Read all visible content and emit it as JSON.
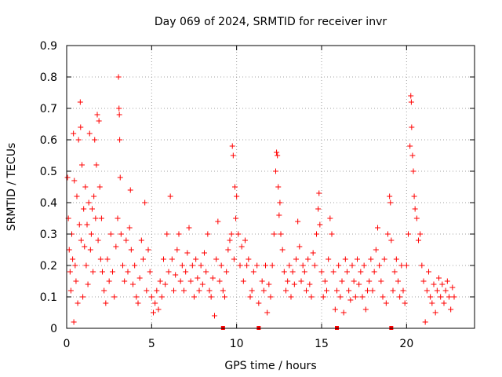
{
  "chart_data": {
    "type": "scatter",
    "title": "Day 069 of 2024, SRMTID for receiver invr",
    "xlabel": "GPS time / hours",
    "ylabel": "SRMTID / TECUs",
    "xlim": [
      0,
      24
    ],
    "ylim": [
      0,
      0.9
    ],
    "x_ticks": [
      0,
      5,
      10,
      15,
      20
    ],
    "x_tick_labels": [
      "0",
      "5",
      "10",
      "15",
      "20"
    ],
    "y_ticks": [
      0,
      0.1,
      0.2,
      0.3,
      0.4,
      0.5,
      0.6,
      0.7,
      0.8,
      0.9
    ],
    "y_tick_labels": [
      "0",
      "0.1",
      "0.2",
      "0.3",
      "0.4",
      "0.5",
      "0.6",
      "0.7",
      "0.8",
      "0.9"
    ],
    "grid": true,
    "marker": "plus",
    "color": "#ff0000",
    "series": [
      {
        "name": "SRMTID",
        "points": [
          [
            0.05,
            0.48
          ],
          [
            0.1,
            0.35
          ],
          [
            0.15,
            0.25
          ],
          [
            0.2,
            0.18
          ],
          [
            0.25,
            0.12
          ],
          [
            0.3,
            0.3
          ],
          [
            0.35,
            0.22
          ],
          [
            0.4,
            0.62
          ],
          [
            0.42,
            0.02
          ],
          [
            0.45,
            0.47
          ],
          [
            0.5,
            0.2
          ],
          [
            0.55,
            0.15
          ],
          [
            0.6,
            0.42
          ],
          [
            0.65,
            0.08
          ],
          [
            0.7,
            0.6
          ],
          [
            0.75,
            0.33
          ],
          [
            0.8,
            0.72
          ],
          [
            0.82,
            0.64
          ],
          [
            0.85,
            0.28
          ],
          [
            0.9,
            0.52
          ],
          [
            0.95,
            0.1
          ],
          [
            1.0,
            0.38
          ],
          [
            1.05,
            0.26
          ],
          [
            1.1,
            0.45
          ],
          [
            1.15,
            0.2
          ],
          [
            1.2,
            0.33
          ],
          [
            1.25,
            0.14
          ],
          [
            1.3,
            0.4
          ],
          [
            1.35,
            0.62
          ],
          [
            1.4,
            0.25
          ],
          [
            1.45,
            0.3
          ],
          [
            1.5,
            0.38
          ],
          [
            1.55,
            0.18
          ],
          [
            1.6,
            0.42
          ],
          [
            1.65,
            0.6
          ],
          [
            1.7,
            0.35
          ],
          [
            1.75,
            0.52
          ],
          [
            1.8,
            0.68
          ],
          [
            1.85,
            0.28
          ],
          [
            1.9,
            0.66
          ],
          [
            1.95,
            0.45
          ],
          [
            2.0,
            0.22
          ],
          [
            2.05,
            0.35
          ],
          [
            2.1,
            0.18
          ],
          [
            2.2,
            0.12
          ],
          [
            2.3,
            0.08
          ],
          [
            2.4,
            0.22
          ],
          [
            2.5,
            0.15
          ],
          [
            2.6,
            0.3
          ],
          [
            2.7,
            0.18
          ],
          [
            2.8,
            0.1
          ],
          [
            2.9,
            0.26
          ],
          [
            3.0,
            0.35
          ],
          [
            3.05,
            0.8
          ],
          [
            3.08,
            0.7
          ],
          [
            3.1,
            0.68
          ],
          [
            3.12,
            0.6
          ],
          [
            3.15,
            0.48
          ],
          [
            3.2,
            0.3
          ],
          [
            3.3,
            0.2
          ],
          [
            3.4,
            0.15
          ],
          [
            3.5,
            0.28
          ],
          [
            3.6,
            0.18
          ],
          [
            3.7,
            0.32
          ],
          [
            3.75,
            0.44
          ],
          [
            3.8,
            0.25
          ],
          [
            3.9,
            0.14
          ],
          [
            4.0,
            0.2
          ],
          [
            4.1,
            0.1
          ],
          [
            4.2,
            0.08
          ],
          [
            4.3,
            0.16
          ],
          [
            4.4,
            0.28
          ],
          [
            4.5,
            0.22
          ],
          [
            4.6,
            0.4
          ],
          [
            4.7,
            0.12
          ],
          [
            4.8,
            0.25
          ],
          [
            4.9,
            0.18
          ],
          [
            5.0,
            0.1
          ],
          [
            5.1,
            0.05
          ],
          [
            5.2,
            0.08
          ],
          [
            5.3,
            0.12
          ],
          [
            5.4,
            0.06
          ],
          [
            5.5,
            0.15
          ],
          [
            5.6,
            0.1
          ],
          [
            5.7,
            0.22
          ],
          [
            5.8,
            0.14
          ],
          [
            5.9,
            0.3
          ],
          [
            6.0,
            0.18
          ],
          [
            6.1,
            0.42
          ],
          [
            6.2,
            0.22
          ],
          [
            6.3,
            0.12
          ],
          [
            6.4,
            0.17
          ],
          [
            6.5,
            0.25
          ],
          [
            6.6,
            0.3
          ],
          [
            6.7,
            0.15
          ],
          [
            6.8,
            0.2
          ],
          [
            6.9,
            0.12
          ],
          [
            7.0,
            0.18
          ],
          [
            7.1,
            0.24
          ],
          [
            7.2,
            0.32
          ],
          [
            7.3,
            0.15
          ],
          [
            7.4,
            0.2
          ],
          [
            7.5,
            0.1
          ],
          [
            7.6,
            0.22
          ],
          [
            7.7,
            0.16
          ],
          [
            7.8,
            0.12
          ],
          [
            7.9,
            0.2
          ],
          [
            8.0,
            0.14
          ],
          [
            8.1,
            0.24
          ],
          [
            8.2,
            0.18
          ],
          [
            8.3,
            0.3
          ],
          [
            8.4,
            0.12
          ],
          [
            8.5,
            0.1
          ],
          [
            8.6,
            0.16
          ],
          [
            8.7,
            0.04
          ],
          [
            8.8,
            0.22
          ],
          [
            8.9,
            0.34
          ],
          [
            9.0,
            0.15
          ],
          [
            9.1,
            0.2
          ],
          [
            9.2,
            0.12
          ],
          [
            9.3,
            0.1
          ],
          [
            9.4,
            0.18
          ],
          [
            9.5,
            0.25
          ],
          [
            9.6,
            0.28
          ],
          [
            9.7,
            0.3
          ],
          [
            9.75,
            0.58
          ],
          [
            9.8,
            0.55
          ],
          [
            9.85,
            0.22
          ],
          [
            9.9,
            0.45
          ],
          [
            9.95,
            0.35
          ],
          [
            10.0,
            0.42
          ],
          [
            10.1,
            0.3
          ],
          [
            10.2,
            0.2
          ],
          [
            10.3,
            0.26
          ],
          [
            10.4,
            0.15
          ],
          [
            10.5,
            0.28
          ],
          [
            10.6,
            0.2
          ],
          [
            10.7,
            0.22
          ],
          [
            10.8,
            0.1
          ],
          [
            10.9,
            0.12
          ],
          [
            11.0,
            0.18
          ],
          [
            11.2,
            0.2
          ],
          [
            11.3,
            0.08
          ],
          [
            11.5,
            0.15
          ],
          [
            11.6,
            0.12
          ],
          [
            11.7,
            0.2
          ],
          [
            11.8,
            0.05
          ],
          [
            11.9,
            0.14
          ],
          [
            12.0,
            0.1
          ],
          [
            12.1,
            0.2
          ],
          [
            12.2,
            0.3
          ],
          [
            12.3,
            0.5
          ],
          [
            12.35,
            0.56
          ],
          [
            12.4,
            0.55
          ],
          [
            12.45,
            0.45
          ],
          [
            12.5,
            0.36
          ],
          [
            12.55,
            0.4
          ],
          [
            12.6,
            0.3
          ],
          [
            12.7,
            0.25
          ],
          [
            12.8,
            0.18
          ],
          [
            12.9,
            0.12
          ],
          [
            13.0,
            0.15
          ],
          [
            13.1,
            0.2
          ],
          [
            13.2,
            0.1
          ],
          [
            13.3,
            0.18
          ],
          [
            13.4,
            0.14
          ],
          [
            13.5,
            0.22
          ],
          [
            13.6,
            0.34
          ],
          [
            13.7,
            0.26
          ],
          [
            13.8,
            0.15
          ],
          [
            13.9,
            0.2
          ],
          [
            14.0,
            0.18
          ],
          [
            14.1,
            0.12
          ],
          [
            14.2,
            0.22
          ],
          [
            14.3,
            0.14
          ],
          [
            14.4,
            0.1
          ],
          [
            14.5,
            0.24
          ],
          [
            14.6,
            0.2
          ],
          [
            14.7,
            0.3
          ],
          [
            14.8,
            0.38
          ],
          [
            14.85,
            0.43
          ],
          [
            14.9,
            0.33
          ],
          [
            15.0,
            0.18
          ],
          [
            15.1,
            0.1
          ],
          [
            15.2,
            0.15
          ],
          [
            15.3,
            0.12
          ],
          [
            15.4,
            0.22
          ],
          [
            15.5,
            0.35
          ],
          [
            15.6,
            0.3
          ],
          [
            15.7,
            0.18
          ],
          [
            15.8,
            0.06
          ],
          [
            15.9,
            0.12
          ],
          [
            16.0,
            0.2
          ],
          [
            16.1,
            0.1
          ],
          [
            16.2,
            0.15
          ],
          [
            16.3,
            0.05
          ],
          [
            16.4,
            0.22
          ],
          [
            16.5,
            0.18
          ],
          [
            16.6,
            0.12
          ],
          [
            16.7,
            0.09
          ],
          [
            16.8,
            0.2
          ],
          [
            16.9,
            0.15
          ],
          [
            17.0,
            0.1
          ],
          [
            17.1,
            0.22
          ],
          [
            17.2,
            0.14
          ],
          [
            17.3,
            0.18
          ],
          [
            17.4,
            0.1
          ],
          [
            17.5,
            0.2
          ],
          [
            17.6,
            0.06
          ],
          [
            17.7,
            0.12
          ],
          [
            17.8,
            0.15
          ],
          [
            17.9,
            0.22
          ],
          [
            18.0,
            0.12
          ],
          [
            18.1,
            0.18
          ],
          [
            18.2,
            0.25
          ],
          [
            18.3,
            0.32
          ],
          [
            18.4,
            0.2
          ],
          [
            18.5,
            0.15
          ],
          [
            18.6,
            0.1
          ],
          [
            18.7,
            0.22
          ],
          [
            18.8,
            0.08
          ],
          [
            18.9,
            0.3
          ],
          [
            19.0,
            0.42
          ],
          [
            19.05,
            0.4
          ],
          [
            19.1,
            0.28
          ],
          [
            19.2,
            0.12
          ],
          [
            19.3,
            0.18
          ],
          [
            19.4,
            0.22
          ],
          [
            19.5,
            0.15
          ],
          [
            19.6,
            0.1
          ],
          [
            19.7,
            0.2
          ],
          [
            19.8,
            0.12
          ],
          [
            19.9,
            0.08
          ],
          [
            20.0,
            0.2
          ],
          [
            20.1,
            0.3
          ],
          [
            20.2,
            0.58
          ],
          [
            20.25,
            0.74
          ],
          [
            20.28,
            0.72
          ],
          [
            20.3,
            0.64
          ],
          [
            20.35,
            0.55
          ],
          [
            20.4,
            0.5
          ],
          [
            20.45,
            0.42
          ],
          [
            20.5,
            0.38
          ],
          [
            20.6,
            0.35
          ],
          [
            20.7,
            0.28
          ],
          [
            20.8,
            0.3
          ],
          [
            20.9,
            0.2
          ],
          [
            21.0,
            0.15
          ],
          [
            21.1,
            0.02
          ],
          [
            21.2,
            0.12
          ],
          [
            21.3,
            0.18
          ],
          [
            21.4,
            0.1
          ],
          [
            21.5,
            0.08
          ],
          [
            21.6,
            0.14
          ],
          [
            21.7,
            0.05
          ],
          [
            21.8,
            0.12
          ],
          [
            21.9,
            0.16
          ],
          [
            22.0,
            0.1
          ],
          [
            22.1,
            0.14
          ],
          [
            22.2,
            0.08
          ],
          [
            22.3,
            0.12
          ],
          [
            22.4,
            0.15
          ],
          [
            22.5,
            0.1
          ],
          [
            22.6,
            0.06
          ],
          [
            22.7,
            0.13
          ],
          [
            22.8,
            0.1
          ]
        ]
      }
    ],
    "markers_on_axis": [
      9.2,
      11.3,
      15.9,
      19.1
    ]
  }
}
